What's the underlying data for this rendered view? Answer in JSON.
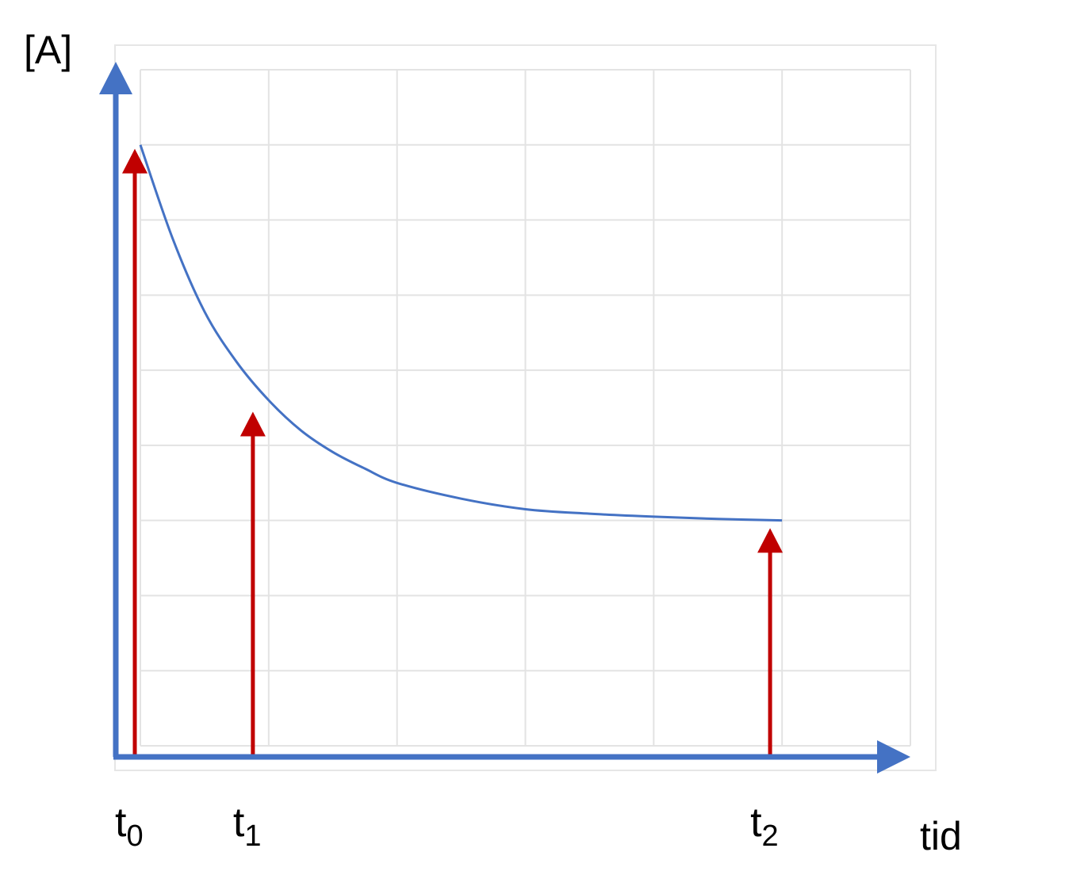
{
  "chart_data": {
    "type": "line",
    "title": "",
    "ylabel": "[A]",
    "xlabel": "tid",
    "xlim": [
      0,
      6
    ],
    "ylim": [
      0,
      9
    ],
    "grid": true,
    "tick_labels_shown": false,
    "colors": {
      "axes": "#4472c4",
      "curve": "#4472c4",
      "markers": "#c00000",
      "grid": "#e3e3e3"
    },
    "series": [
      {
        "x": [
          0,
          0.25,
          0.5,
          0.75,
          1,
          1.25,
          1.5,
          1.75,
          2,
          2.5,
          3,
          3.5,
          4,
          4.5,
          5
        ],
        "y": [
          8.0,
          6.76,
          5.78,
          5.11,
          4.6,
          4.2,
          3.91,
          3.69,
          3.5,
          3.29,
          3.15,
          3.09,
          3.05,
          3.02,
          3.0
        ]
      }
    ],
    "markers": [
      {
        "label": "t",
        "sub": "0",
        "x": 0,
        "value": 8.0
      },
      {
        "label": "t",
        "sub": "1",
        "x": 0.92,
        "value": 4.5
      },
      {
        "label": "t",
        "sub": "2",
        "x": 4.95,
        "value": 2.95
      }
    ]
  }
}
